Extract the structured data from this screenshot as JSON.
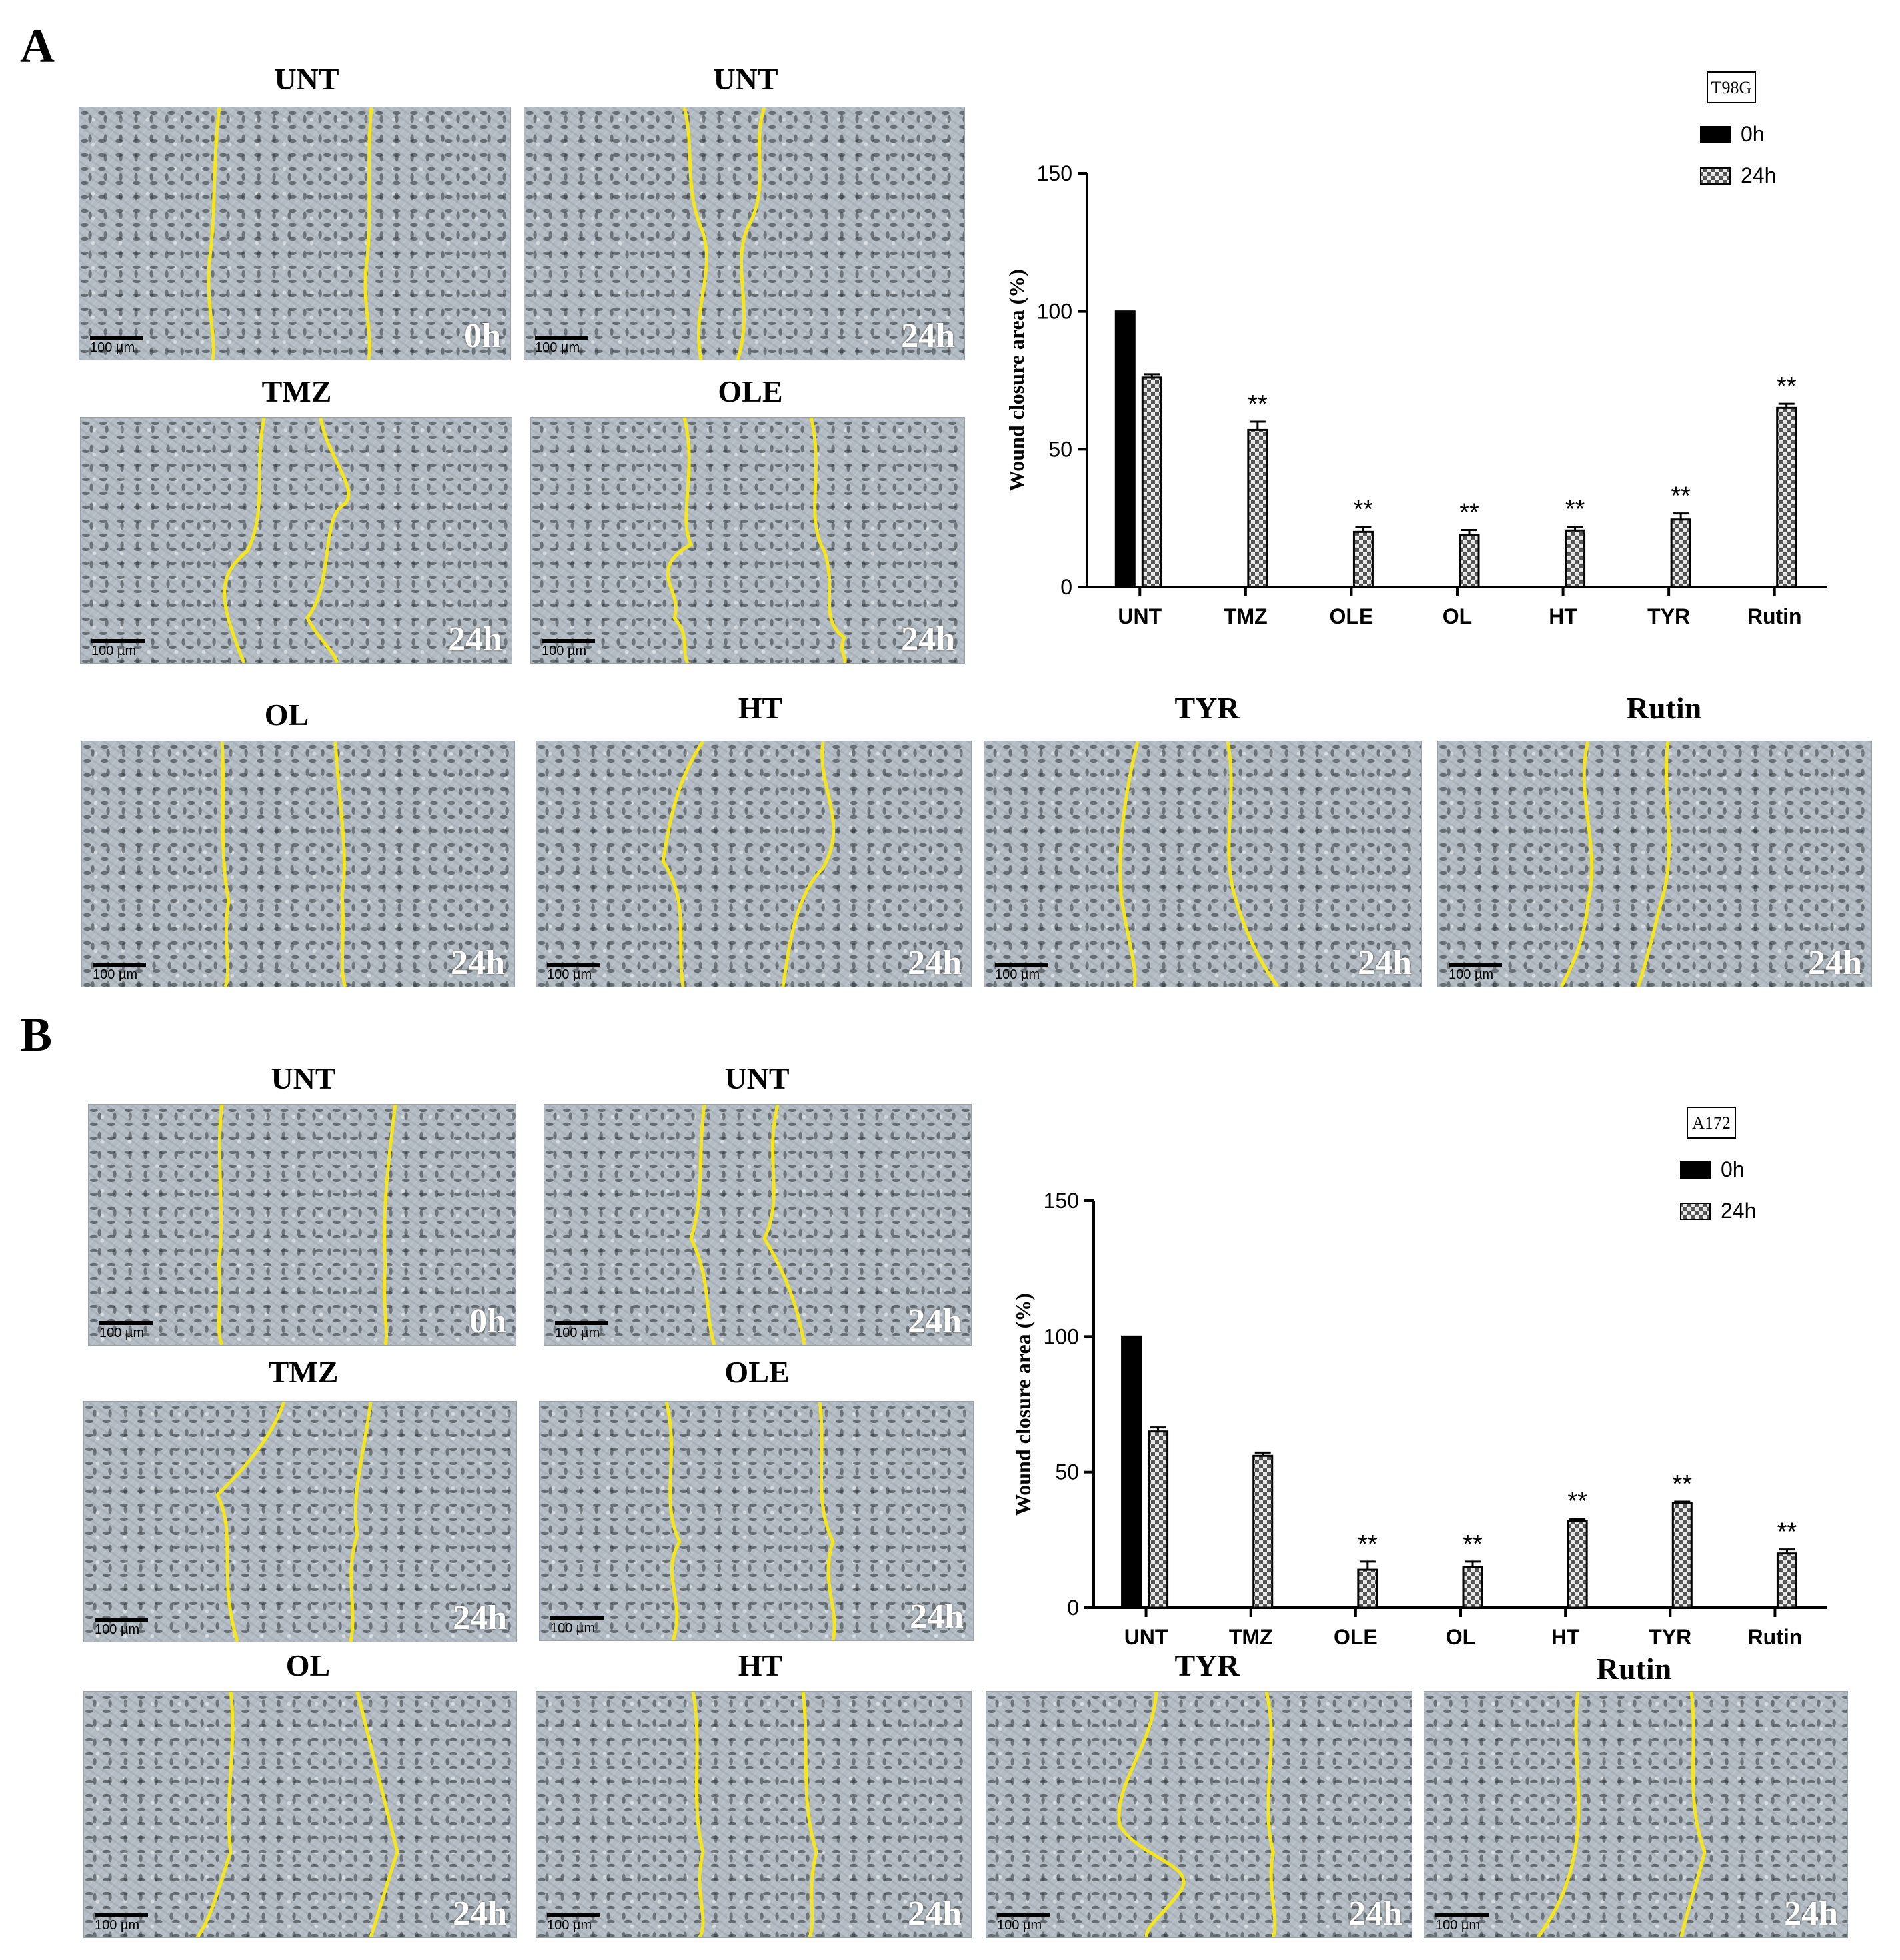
{
  "panel_a": {
    "letter": "A",
    "micrographs": [
      {
        "title": "UNT",
        "time": "0h"
      },
      {
        "title": "UNT",
        "time": "24h"
      },
      {
        "title": "TMZ",
        "time": "24h"
      },
      {
        "title": "OLE",
        "time": "24h"
      },
      {
        "title": "OL",
        "time": "24h"
      },
      {
        "title": "HT",
        "time": "24h"
      },
      {
        "title": "TYR",
        "time": "24h"
      },
      {
        "title": "Rutin",
        "time": "24h"
      }
    ]
  },
  "panel_b": {
    "letter": "B",
    "micrographs": [
      {
        "title": "UNT",
        "time": "0h"
      },
      {
        "title": "UNT",
        "time": "24h"
      },
      {
        "title": "TMZ",
        "time": "24h"
      },
      {
        "title": "OLE",
        "time": "24h"
      },
      {
        "title": "OL",
        "time": "24h"
      },
      {
        "title": "HT",
        "time": "24h"
      },
      {
        "title": "TYR",
        "time": "24h"
      },
      {
        "title": "Rutin",
        "time": "24h"
      }
    ]
  },
  "scale_bar_label": "100 µm",
  "wound_line_color": "#f5e51b",
  "chart_data": [
    {
      "type": "bar",
      "cell_line": "T98G",
      "ylabel": "Wound closure area (%)",
      "ylim": [
        0,
        150
      ],
      "yticks": [
        0,
        50,
        100,
        150
      ],
      "categories": [
        "UNT",
        "TMZ",
        "OLE",
        "OL",
        "HT",
        "TYR",
        "Rutin"
      ],
      "series": [
        {
          "name": "0h",
          "color": "#000000",
          "pattern": "solid",
          "values": [
            100,
            null,
            null,
            null,
            null,
            null,
            null
          ],
          "errors": [
            0,
            null,
            null,
            null,
            null,
            null,
            null
          ]
        },
        {
          "name": "24h",
          "color": "#666666",
          "pattern": "checkered",
          "values": [
            76,
            57,
            20,
            19,
            20.5,
            24.5,
            65
          ],
          "errors": [
            1.2,
            3,
            1.8,
            1.7,
            1.4,
            2.2,
            1.5
          ]
        }
      ],
      "annotations": [
        "",
        "**",
        "**",
        "**",
        "**",
        "**",
        "**"
      ],
      "legend_position": "top-right"
    },
    {
      "type": "bar",
      "cell_line": "A172",
      "ylabel": "Wound closure area (%)",
      "ylim": [
        0,
        150
      ],
      "yticks": [
        0,
        50,
        100,
        150
      ],
      "categories": [
        "UNT",
        "TMZ",
        "OLE",
        "OL",
        "HT",
        "TYR",
        "Rutin"
      ],
      "series": [
        {
          "name": "0h",
          "color": "#000000",
          "pattern": "solid",
          "values": [
            100,
            null,
            null,
            null,
            null,
            null,
            null
          ],
          "errors": [
            0,
            null,
            null,
            null,
            null,
            null,
            null
          ]
        },
        {
          "name": "24h",
          "color": "#666666",
          "pattern": "checkered",
          "values": [
            65,
            56,
            14,
            15,
            32,
            38.5,
            20
          ],
          "errors": [
            1.5,
            1.2,
            3,
            2,
            0.8,
            0.6,
            1.5
          ]
        }
      ],
      "annotations": [
        "",
        "",
        "**",
        "**",
        "**",
        "**",
        "**"
      ],
      "legend_position": "top-right"
    }
  ]
}
